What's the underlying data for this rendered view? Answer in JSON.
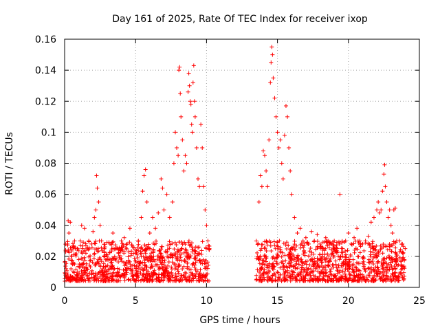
{
  "chart_data": {
    "type": "scatter",
    "title": "Day 161 of 2025, Rate Of TEC Index for receiver ixop",
    "xlabel": "GPS time / hours",
    "ylabel": "ROTI / TECUs",
    "xlim": [
      0,
      25
    ],
    "ylim": [
      0,
      0.16
    ],
    "xticks": [
      0,
      5,
      10,
      15,
      20,
      25
    ],
    "xtick_labels": [
      "0",
      "5",
      "10",
      "15",
      "20",
      "25"
    ],
    "yticks": [
      0,
      0.02,
      0.04,
      0.06,
      0.08,
      0.1,
      0.12,
      0.14,
      0.16
    ],
    "ytick_labels": [
      "0",
      "0.02",
      "0.04",
      "0.06",
      "0.08",
      "0.1",
      "0.12",
      "0.14",
      "0.16"
    ],
    "grid": true,
    "marker": "+",
    "color": "#ff0000",
    "series": [
      {
        "name": "ROTI",
        "points": [
          [
            0.1,
            0.012
          ],
          [
            0.2,
            0.028
          ],
          [
            0.25,
            0.043
          ],
          [
            0.3,
            0.035
          ],
          [
            0.4,
            0.042
          ],
          [
            0.5,
            0.02
          ],
          [
            0.7,
            0.015
          ],
          [
            0.9,
            0.025
          ],
          [
            1.0,
            0.018
          ],
          [
            1.1,
            0.03
          ],
          [
            1.2,
            0.04
          ],
          [
            1.4,
            0.038
          ],
          [
            1.5,
            0.022
          ],
          [
            1.7,
            0.03
          ],
          [
            1.9,
            0.028
          ],
          [
            2.0,
            0.036
          ],
          [
            2.1,
            0.045
          ],
          [
            2.2,
            0.05
          ],
          [
            2.25,
            0.072
          ],
          [
            2.3,
            0.064
          ],
          [
            2.4,
            0.055
          ],
          [
            2.5,
            0.04
          ],
          [
            2.6,
            0.03
          ],
          [
            2.8,
            0.025
          ],
          [
            3.0,
            0.02
          ],
          [
            3.2,
            0.028
          ],
          [
            3.4,
            0.035
          ],
          [
            3.6,
            0.025
          ],
          [
            3.8,
            0.022
          ],
          [
            4.0,
            0.03
          ],
          [
            4.2,
            0.032
          ],
          [
            4.4,
            0.028
          ],
          [
            4.6,
            0.038
          ],
          [
            4.8,
            0.026
          ],
          [
            5.0,
            0.022
          ],
          [
            5.2,
            0.03
          ],
          [
            5.4,
            0.045
          ],
          [
            5.5,
            0.062
          ],
          [
            5.6,
            0.072
          ],
          [
            5.7,
            0.076
          ],
          [
            5.8,
            0.055
          ],
          [
            6.0,
            0.035
          ],
          [
            6.2,
            0.045
          ],
          [
            6.4,
            0.038
          ],
          [
            6.6,
            0.048
          ],
          [
            6.8,
            0.07
          ],
          [
            6.9,
            0.064
          ],
          [
            7.0,
            0.05
          ],
          [
            7.2,
            0.06
          ],
          [
            7.4,
            0.045
          ],
          [
            7.6,
            0.055
          ],
          [
            7.7,
            0.08
          ],
          [
            7.8,
            0.1
          ],
          [
            7.9,
            0.09
          ],
          [
            8.0,
            0.085
          ],
          [
            8.05,
            0.14
          ],
          [
            8.1,
            0.142
          ],
          [
            8.15,
            0.125
          ],
          [
            8.2,
            0.11
          ],
          [
            8.3,
            0.095
          ],
          [
            8.4,
            0.075
          ],
          [
            8.5,
            0.085
          ],
          [
            8.6,
            0.08
          ],
          [
            8.7,
            0.126
          ],
          [
            8.75,
            0.138
          ],
          [
            8.8,
            0.13
          ],
          [
            8.85,
            0.12
          ],
          [
            8.9,
            0.118
          ],
          [
            8.95,
            0.105
          ],
          [
            9.0,
            0.1
          ],
          [
            9.05,
            0.132
          ],
          [
            9.1,
            0.143
          ],
          [
            9.15,
            0.12
          ],
          [
            9.2,
            0.11
          ],
          [
            9.3,
            0.09
          ],
          [
            9.4,
            0.07
          ],
          [
            9.5,
            0.065
          ],
          [
            9.6,
            0.105
          ],
          [
            9.7,
            0.09
          ],
          [
            9.8,
            0.065
          ],
          [
            9.9,
            0.05
          ],
          [
            10.0,
            0.04
          ],
          [
            10.1,
            0.03
          ],
          [
            10.2,
            0.025
          ],
          [
            13.6,
            0.02
          ],
          [
            13.7,
            0.055
          ],
          [
            13.8,
            0.072
          ],
          [
            13.9,
            0.065
          ],
          [
            14.0,
            0.088
          ],
          [
            14.1,
            0.085
          ],
          [
            14.2,
            0.075
          ],
          [
            14.3,
            0.065
          ],
          [
            14.4,
            0.095
          ],
          [
            14.5,
            0.132
          ],
          [
            14.55,
            0.145
          ],
          [
            14.6,
            0.155
          ],
          [
            14.65,
            0.15
          ],
          [
            14.7,
            0.135
          ],
          [
            14.8,
            0.122
          ],
          [
            14.9,
            0.11
          ],
          [
            15.0,
            0.1
          ],
          [
            15.1,
            0.09
          ],
          [
            15.2,
            0.095
          ],
          [
            15.3,
            0.08
          ],
          [
            15.4,
            0.07
          ],
          [
            15.5,
            0.098
          ],
          [
            15.6,
            0.117
          ],
          [
            15.7,
            0.11
          ],
          [
            15.8,
            0.09
          ],
          [
            15.9,
            0.075
          ],
          [
            16.0,
            0.06
          ],
          [
            16.2,
            0.045
          ],
          [
            16.4,
            0.035
          ],
          [
            16.6,
            0.038
          ],
          [
            16.8,
            0.03
          ],
          [
            17.0,
            0.032
          ],
          [
            17.2,
            0.028
          ],
          [
            17.4,
            0.036
          ],
          [
            17.6,
            0.03
          ],
          [
            17.8,
            0.034
          ],
          [
            18.0,
            0.028
          ],
          [
            18.2,
            0.025
          ],
          [
            18.4,
            0.032
          ],
          [
            18.6,
            0.03
          ],
          [
            18.8,
            0.028
          ],
          [
            19.0,
            0.03
          ],
          [
            19.2,
            0.025
          ],
          [
            19.4,
            0.06
          ],
          [
            19.6,
            0.025
          ],
          [
            19.8,
            0.03
          ],
          [
            20.0,
            0.035
          ],
          [
            20.2,
            0.028
          ],
          [
            20.4,
            0.032
          ],
          [
            20.6,
            0.038
          ],
          [
            20.8,
            0.03
          ],
          [
            21.0,
            0.028
          ],
          [
            21.2,
            0.03
          ],
          [
            21.4,
            0.033
          ],
          [
            21.6,
            0.042
          ],
          [
            21.8,
            0.045
          ],
          [
            22.0,
            0.05
          ],
          [
            22.1,
            0.055
          ],
          [
            22.2,
            0.048
          ],
          [
            22.3,
            0.05
          ],
          [
            22.4,
            0.062
          ],
          [
            22.5,
            0.073
          ],
          [
            22.55,
            0.079
          ],
          [
            22.6,
            0.065
          ],
          [
            22.7,
            0.055
          ],
          [
            22.8,
            0.045
          ],
          [
            22.9,
            0.05
          ],
          [
            23.0,
            0.04
          ],
          [
            23.1,
            0.035
          ],
          [
            23.2,
            0.05
          ],
          [
            23.3,
            0.051
          ],
          [
            23.4,
            0.03
          ],
          [
            23.6,
            0.03
          ],
          [
            23.8,
            0.028
          ],
          [
            24.0,
            0.025
          ]
        ]
      }
    ],
    "dense_band": [
      {
        "x_start": 0.0,
        "x_end": 10.2,
        "y_min": 0.004,
        "y_max": 0.03
      },
      {
        "x_start": 13.5,
        "x_end": 24.0,
        "y_min": 0.004,
        "y_max": 0.03
      }
    ]
  }
}
